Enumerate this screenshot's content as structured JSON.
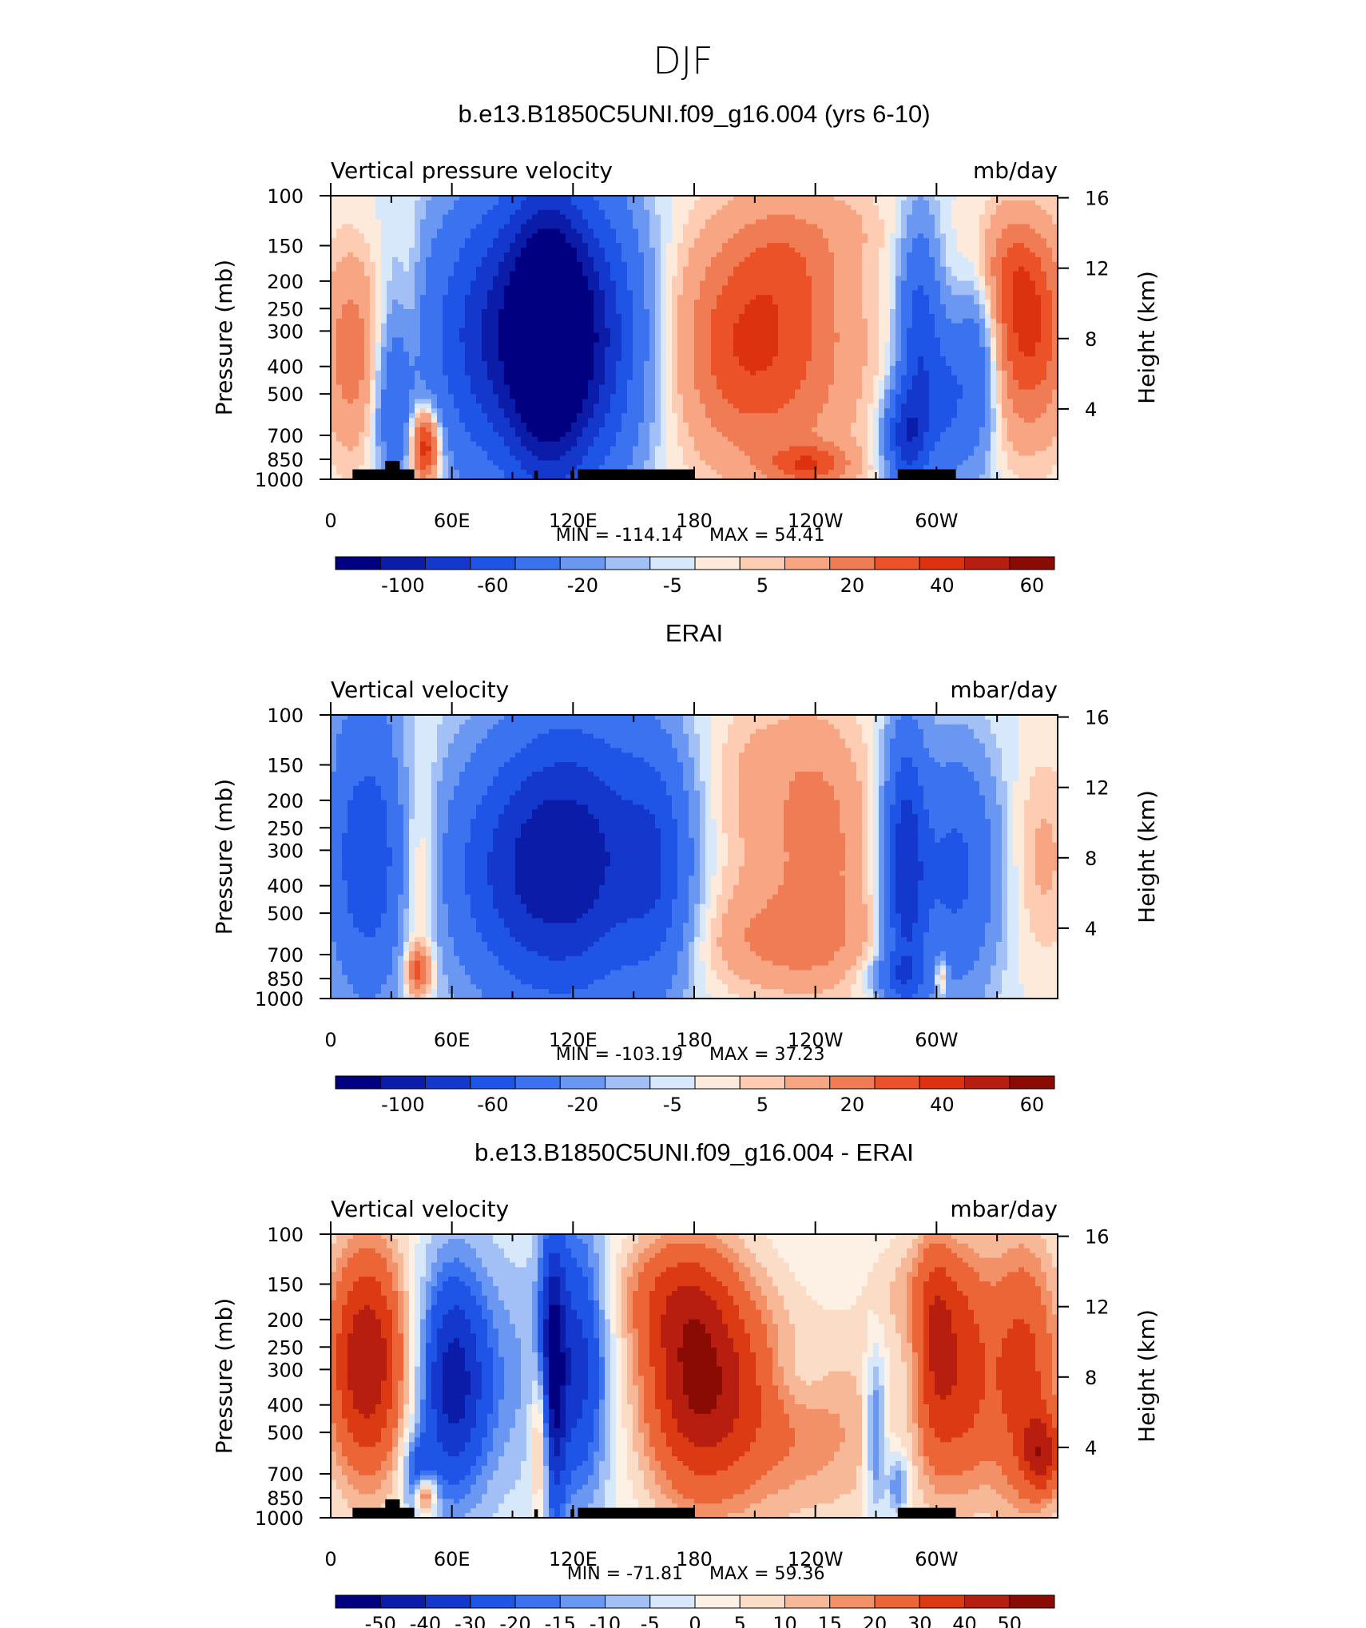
{
  "figure_title": "DJF",
  "colors": {
    "model_scale": [
      "#000080",
      "#0a1ca8",
      "#1437cc",
      "#1f55e6",
      "#3a72f0",
      "#6a97f2",
      "#a3c0f6",
      "#d7e8fb",
      "#feeadb",
      "#fdccb2",
      "#f7a582",
      "#f07c55",
      "#eb5228",
      "#dc3210",
      "#b81e10",
      "#8a0a04"
    ],
    "diff_scale": [
      "#000080",
      "#0a1ca8",
      "#1437cc",
      "#1f55e6",
      "#3a72f0",
      "#6a97f2",
      "#a3c0f6",
      "#d7e8fb",
      "#fdf1e6",
      "#fbdcc7",
      "#f7b898",
      "#f29067",
      "#ec6537",
      "#dc3a12",
      "#b81e10",
      "#8a0a04"
    ]
  },
  "chart_data": [
    {
      "type": "heatmap",
      "title": "b.e13.B1850C5UNI.f09_g16.004 (yrs 6-10)",
      "left_label": "Vertical pressure velocity",
      "right_label": "mb/day",
      "ylabel": "Pressure (mb)",
      "y2label": "Height (km)",
      "x_tick_labels": [
        "0",
        "60E",
        "120E",
        "180",
        "120W",
        "60W"
      ],
      "y_tick_labels": [
        "100",
        "150",
        "200",
        "250",
        "300",
        "400",
        "500",
        "700",
        "850",
        "1000"
      ],
      "y2_tick_labels": [
        "16",
        "12",
        "8",
        "4"
      ],
      "min_label": "MIN = -114.14",
      "max_label": "MAX = 54.41",
      "colorbar_labels": [
        "-100",
        "-60",
        "-20",
        "-5",
        "5",
        "20",
        "40",
        "60"
      ]
    },
    {
      "type": "heatmap",
      "title": "ERAI",
      "left_label": "Vertical velocity",
      "right_label": "mbar/day",
      "ylabel": "Pressure (mb)",
      "y2label": "Height (km)",
      "x_tick_labels": [
        "0",
        "60E",
        "120E",
        "180",
        "120W",
        "60W"
      ],
      "y_tick_labels": [
        "100",
        "150",
        "200",
        "250",
        "300",
        "400",
        "500",
        "700",
        "850",
        "1000"
      ],
      "y2_tick_labels": [
        "16",
        "12",
        "8",
        "4"
      ],
      "min_label": "MIN = -103.19",
      "max_label": "MAX = 37.23",
      "colorbar_labels": [
        "-100",
        "-60",
        "-20",
        "-5",
        "5",
        "20",
        "40",
        "60"
      ]
    },
    {
      "type": "heatmap",
      "title": "b.e13.B1850C5UNI.f09_g16.004 - ERAI",
      "left_label": "Vertical velocity",
      "right_label": "mbar/day",
      "ylabel": "Pressure (mb)",
      "y2label": "Height (km)",
      "x_tick_labels": [
        "0",
        "60E",
        "120E",
        "180",
        "120W",
        "60W"
      ],
      "y_tick_labels": [
        "100",
        "150",
        "200",
        "250",
        "300",
        "400",
        "500",
        "700",
        "850",
        "1000"
      ],
      "y2_tick_labels": [
        "16",
        "12",
        "8",
        "4"
      ],
      "min_label": "MIN = -71.81",
      "max_label": "MAX = 59.36",
      "colorbar_labels": [
        "-50",
        "-40",
        "-30",
        "-20",
        "-15",
        "-10",
        "-5",
        "0",
        "5",
        "10",
        "15",
        "20",
        "30",
        "40",
        "50"
      ]
    }
  ]
}
